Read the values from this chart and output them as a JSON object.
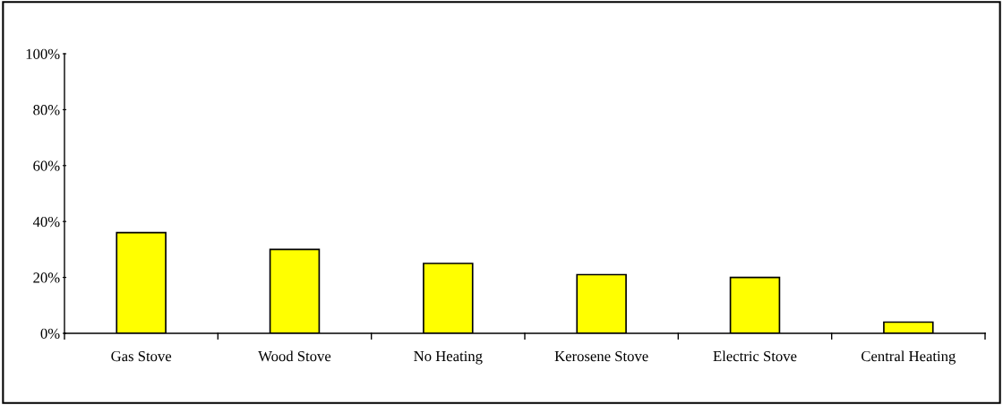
{
  "chart_data": {
    "type": "bar",
    "categories": [
      "Gas Stove",
      "Wood Stove",
      "No Heating",
      "Kerosene Stove",
      "Electric Stove",
      "Central Heating"
    ],
    "values": [
      36,
      30,
      25,
      21,
      20,
      4
    ],
    "color": "#ffff00",
    "ylim": [
      0,
      100
    ],
    "yticks": [
      {
        "value": 0,
        "label": "0%"
      },
      {
        "value": 20,
        "label": "20%"
      },
      {
        "value": 40,
        "label": "40%"
      },
      {
        "value": 60,
        "label": "60%"
      },
      {
        "value": 80,
        "label": "80%"
      },
      {
        "value": 100,
        "label": "100%"
      }
    ],
    "grid": false,
    "legend": false
  }
}
